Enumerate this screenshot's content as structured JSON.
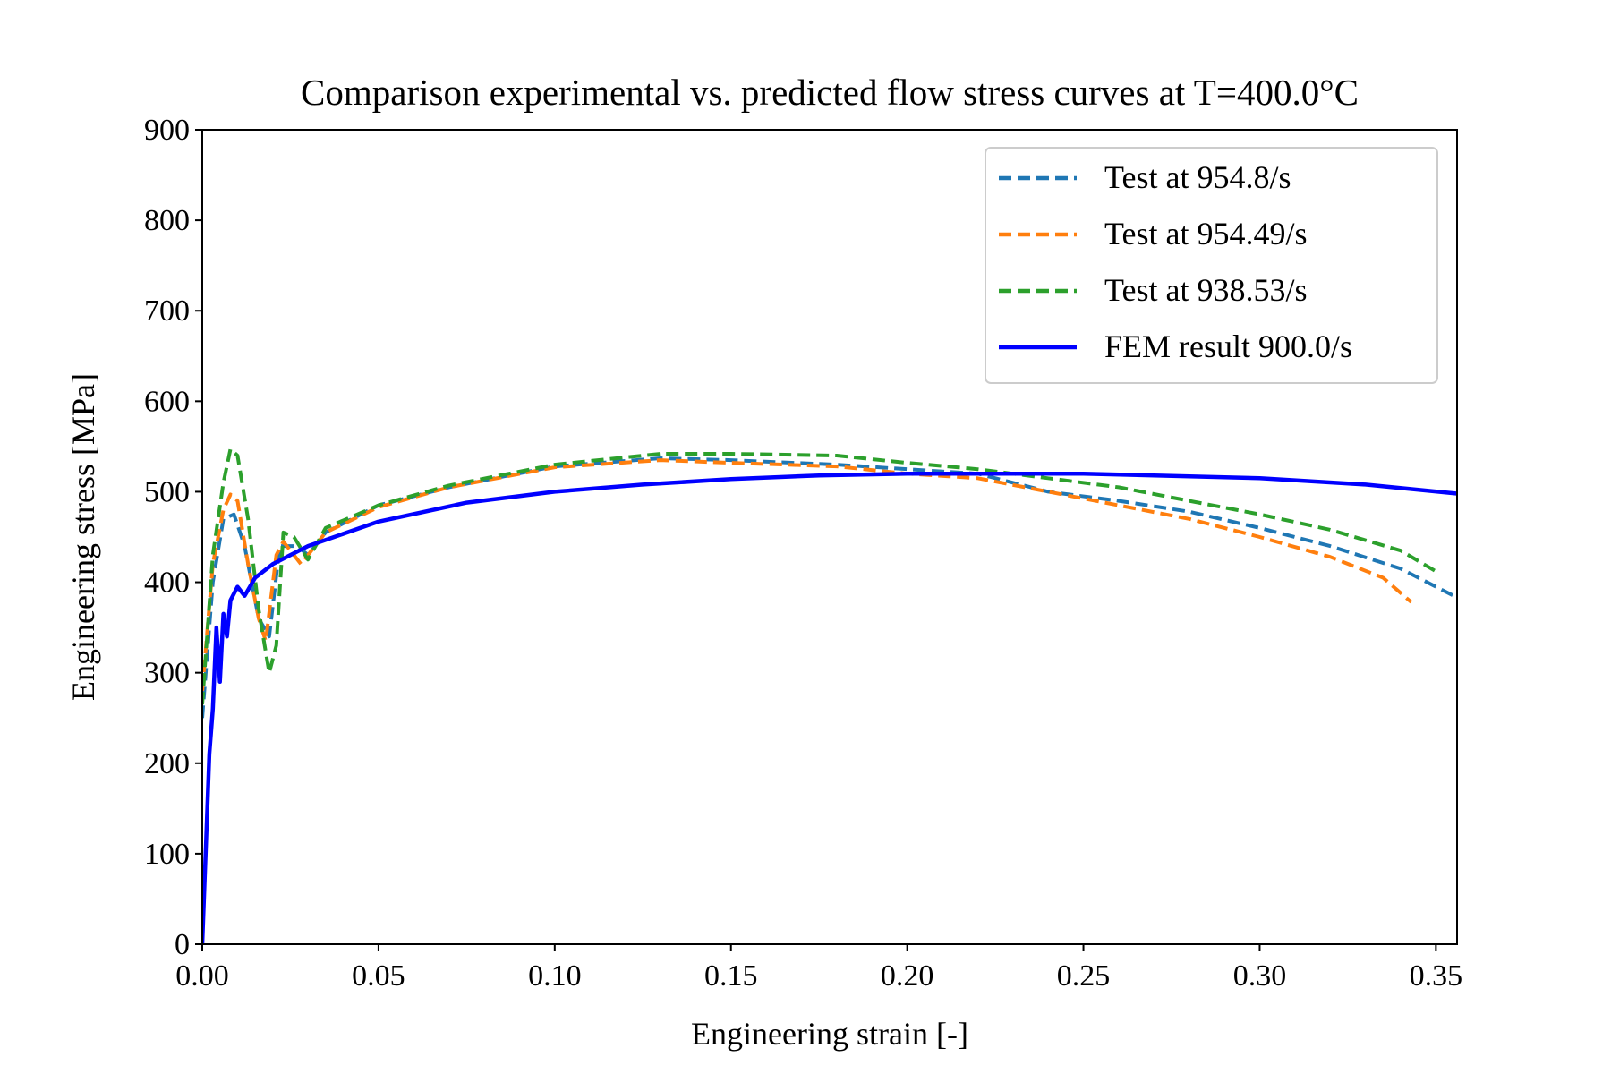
{
  "chart_data": {
    "type": "line",
    "title": "Comparison experimental vs. predicted flow stress curves at T=400.0°C",
    "xlabel": "Engineering strain [-]",
    "ylabel": "Engineering stress [MPa]",
    "xlim": [
      0,
      0.356
    ],
    "ylim": [
      0,
      900
    ],
    "xticks": [
      0,
      0.05,
      0.1,
      0.15,
      0.2,
      0.25,
      0.3,
      0.35
    ],
    "xtick_labels": [
      "0.00",
      "0.05",
      "0.10",
      "0.15",
      "0.20",
      "0.25",
      "0.30",
      "0.35"
    ],
    "yticks": [
      0,
      100,
      200,
      300,
      400,
      500,
      600,
      700,
      800,
      900
    ],
    "ytick_labels": [
      "0",
      "100",
      "200",
      "300",
      "400",
      "500",
      "600",
      "700",
      "800",
      "900"
    ],
    "grid": false,
    "legend_position": "top-right",
    "series": [
      {
        "name": "Test at 954.8/s",
        "color": "#1f77b4",
        "style": "dashed",
        "x": [
          0,
          0.003,
          0.006,
          0.009,
          0.012,
          0.016,
          0.019,
          0.022,
          0.027,
          0.03,
          0.035,
          0.05,
          0.07,
          0.1,
          0.13,
          0.15,
          0.18,
          0.2,
          0.22,
          0.24,
          0.26,
          0.28,
          0.3,
          0.32,
          0.34,
          0.356
        ],
        "y": [
          250,
          400,
          470,
          475,
          440,
          360,
          340,
          440,
          440,
          430,
          455,
          485,
          505,
          528,
          537,
          535,
          530,
          525,
          520,
          500,
          490,
          478,
          460,
          440,
          415,
          383
        ]
      },
      {
        "name": "Test at 954.49/s",
        "color": "#ff7f0e",
        "style": "dashed",
        "x": [
          0,
          0.003,
          0.006,
          0.008,
          0.01,
          0.013,
          0.016,
          0.018,
          0.021,
          0.023,
          0.028,
          0.035,
          0.05,
          0.07,
          0.1,
          0.13,
          0.15,
          0.18,
          0.2,
          0.22,
          0.24,
          0.26,
          0.28,
          0.3,
          0.32,
          0.335,
          0.343
        ],
        "y": [
          280,
          420,
          480,
          497,
          490,
          420,
          360,
          335,
          430,
          445,
          420,
          455,
          483,
          505,
          527,
          535,
          532,
          528,
          520,
          515,
          500,
          485,
          470,
          450,
          428,
          405,
          378
        ]
      },
      {
        "name": "Test at 938.53/s",
        "color": "#2ca02c",
        "style": "dashed",
        "x": [
          0,
          0.003,
          0.006,
          0.008,
          0.01,
          0.013,
          0.016,
          0.019,
          0.021,
          0.023,
          0.026,
          0.03,
          0.035,
          0.05,
          0.07,
          0.1,
          0.13,
          0.15,
          0.18,
          0.2,
          0.22,
          0.24,
          0.26,
          0.28,
          0.3,
          0.32,
          0.34,
          0.35
        ],
        "y": [
          265,
          430,
          510,
          547,
          540,
          470,
          370,
          300,
          330,
          455,
          450,
          425,
          460,
          485,
          507,
          530,
          542,
          542,
          540,
          532,
          525,
          515,
          505,
          490,
          475,
          458,
          435,
          412
        ]
      },
      {
        "name": "FEM result 900.0/s",
        "color": "#0000ff",
        "style": "solid",
        "x": [
          0,
          0.002,
          0.003,
          0.004,
          0.005,
          0.006,
          0.007,
          0.008,
          0.01,
          0.012,
          0.015,
          0.02,
          0.03,
          0.05,
          0.075,
          0.1,
          0.125,
          0.15,
          0.175,
          0.2,
          0.25,
          0.3,
          0.33,
          0.356
        ],
        "y": [
          0,
          210,
          260,
          350,
          290,
          365,
          340,
          380,
          395,
          385,
          405,
          420,
          440,
          467,
          488,
          500,
          508,
          514,
          518,
          520,
          520,
          515,
          508,
          498
        ]
      }
    ]
  }
}
